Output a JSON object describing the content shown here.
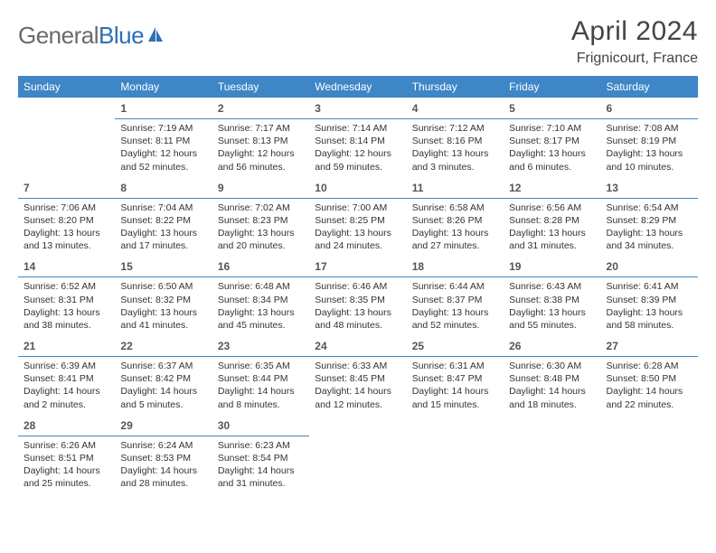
{
  "brand": {
    "part1": "General",
    "part2": "Blue"
  },
  "title": "April 2024",
  "location": "Frignicourt, France",
  "colors": {
    "header_bg": "#3e86c6",
    "header_text": "#ffffff",
    "cell_border": "#3e86c6",
    "body_text": "#333333",
    "logo_gray": "#6a6a6a",
    "logo_blue": "#2d6fb5",
    "background": "#ffffff"
  },
  "typography": {
    "month_title_size": 30,
    "location_size": 16,
    "header_cell_size": 12,
    "daynum_size": 12,
    "body_size": 10.5
  },
  "weekdays": [
    "Sunday",
    "Monday",
    "Tuesday",
    "Wednesday",
    "Thursday",
    "Friday",
    "Saturday"
  ],
  "weeks": [
    [
      {
        "n": "",
        "sr": "",
        "ss": "",
        "dl": ""
      },
      {
        "n": "1",
        "sr": "Sunrise: 7:19 AM",
        "ss": "Sunset: 8:11 PM",
        "dl": "Daylight: 12 hours and 52 minutes."
      },
      {
        "n": "2",
        "sr": "Sunrise: 7:17 AM",
        "ss": "Sunset: 8:13 PM",
        "dl": "Daylight: 12 hours and 56 minutes."
      },
      {
        "n": "3",
        "sr": "Sunrise: 7:14 AM",
        "ss": "Sunset: 8:14 PM",
        "dl": "Daylight: 12 hours and 59 minutes."
      },
      {
        "n": "4",
        "sr": "Sunrise: 7:12 AM",
        "ss": "Sunset: 8:16 PM",
        "dl": "Daylight: 13 hours and 3 minutes."
      },
      {
        "n": "5",
        "sr": "Sunrise: 7:10 AM",
        "ss": "Sunset: 8:17 PM",
        "dl": "Daylight: 13 hours and 6 minutes."
      },
      {
        "n": "6",
        "sr": "Sunrise: 7:08 AM",
        "ss": "Sunset: 8:19 PM",
        "dl": "Daylight: 13 hours and 10 minutes."
      }
    ],
    [
      {
        "n": "7",
        "sr": "Sunrise: 7:06 AM",
        "ss": "Sunset: 8:20 PM",
        "dl": "Daylight: 13 hours and 13 minutes."
      },
      {
        "n": "8",
        "sr": "Sunrise: 7:04 AM",
        "ss": "Sunset: 8:22 PM",
        "dl": "Daylight: 13 hours and 17 minutes."
      },
      {
        "n": "9",
        "sr": "Sunrise: 7:02 AM",
        "ss": "Sunset: 8:23 PM",
        "dl": "Daylight: 13 hours and 20 minutes."
      },
      {
        "n": "10",
        "sr": "Sunrise: 7:00 AM",
        "ss": "Sunset: 8:25 PM",
        "dl": "Daylight: 13 hours and 24 minutes."
      },
      {
        "n": "11",
        "sr": "Sunrise: 6:58 AM",
        "ss": "Sunset: 8:26 PM",
        "dl": "Daylight: 13 hours and 27 minutes."
      },
      {
        "n": "12",
        "sr": "Sunrise: 6:56 AM",
        "ss": "Sunset: 8:28 PM",
        "dl": "Daylight: 13 hours and 31 minutes."
      },
      {
        "n": "13",
        "sr": "Sunrise: 6:54 AM",
        "ss": "Sunset: 8:29 PM",
        "dl": "Daylight: 13 hours and 34 minutes."
      }
    ],
    [
      {
        "n": "14",
        "sr": "Sunrise: 6:52 AM",
        "ss": "Sunset: 8:31 PM",
        "dl": "Daylight: 13 hours and 38 minutes."
      },
      {
        "n": "15",
        "sr": "Sunrise: 6:50 AM",
        "ss": "Sunset: 8:32 PM",
        "dl": "Daylight: 13 hours and 41 minutes."
      },
      {
        "n": "16",
        "sr": "Sunrise: 6:48 AM",
        "ss": "Sunset: 8:34 PM",
        "dl": "Daylight: 13 hours and 45 minutes."
      },
      {
        "n": "17",
        "sr": "Sunrise: 6:46 AM",
        "ss": "Sunset: 8:35 PM",
        "dl": "Daylight: 13 hours and 48 minutes."
      },
      {
        "n": "18",
        "sr": "Sunrise: 6:44 AM",
        "ss": "Sunset: 8:37 PM",
        "dl": "Daylight: 13 hours and 52 minutes."
      },
      {
        "n": "19",
        "sr": "Sunrise: 6:43 AM",
        "ss": "Sunset: 8:38 PM",
        "dl": "Daylight: 13 hours and 55 minutes."
      },
      {
        "n": "20",
        "sr": "Sunrise: 6:41 AM",
        "ss": "Sunset: 8:39 PM",
        "dl": "Daylight: 13 hours and 58 minutes."
      }
    ],
    [
      {
        "n": "21",
        "sr": "Sunrise: 6:39 AM",
        "ss": "Sunset: 8:41 PM",
        "dl": "Daylight: 14 hours and 2 minutes."
      },
      {
        "n": "22",
        "sr": "Sunrise: 6:37 AM",
        "ss": "Sunset: 8:42 PM",
        "dl": "Daylight: 14 hours and 5 minutes."
      },
      {
        "n": "23",
        "sr": "Sunrise: 6:35 AM",
        "ss": "Sunset: 8:44 PM",
        "dl": "Daylight: 14 hours and 8 minutes."
      },
      {
        "n": "24",
        "sr": "Sunrise: 6:33 AM",
        "ss": "Sunset: 8:45 PM",
        "dl": "Daylight: 14 hours and 12 minutes."
      },
      {
        "n": "25",
        "sr": "Sunrise: 6:31 AM",
        "ss": "Sunset: 8:47 PM",
        "dl": "Daylight: 14 hours and 15 minutes."
      },
      {
        "n": "26",
        "sr": "Sunrise: 6:30 AM",
        "ss": "Sunset: 8:48 PM",
        "dl": "Daylight: 14 hours and 18 minutes."
      },
      {
        "n": "27",
        "sr": "Sunrise: 6:28 AM",
        "ss": "Sunset: 8:50 PM",
        "dl": "Daylight: 14 hours and 22 minutes."
      }
    ],
    [
      {
        "n": "28",
        "sr": "Sunrise: 6:26 AM",
        "ss": "Sunset: 8:51 PM",
        "dl": "Daylight: 14 hours and 25 minutes."
      },
      {
        "n": "29",
        "sr": "Sunrise: 6:24 AM",
        "ss": "Sunset: 8:53 PM",
        "dl": "Daylight: 14 hours and 28 minutes."
      },
      {
        "n": "30",
        "sr": "Sunrise: 6:23 AM",
        "ss": "Sunset: 8:54 PM",
        "dl": "Daylight: 14 hours and 31 minutes."
      },
      {
        "n": "",
        "sr": "",
        "ss": "",
        "dl": ""
      },
      {
        "n": "",
        "sr": "",
        "ss": "",
        "dl": ""
      },
      {
        "n": "",
        "sr": "",
        "ss": "",
        "dl": ""
      },
      {
        "n": "",
        "sr": "",
        "ss": "",
        "dl": ""
      }
    ]
  ]
}
